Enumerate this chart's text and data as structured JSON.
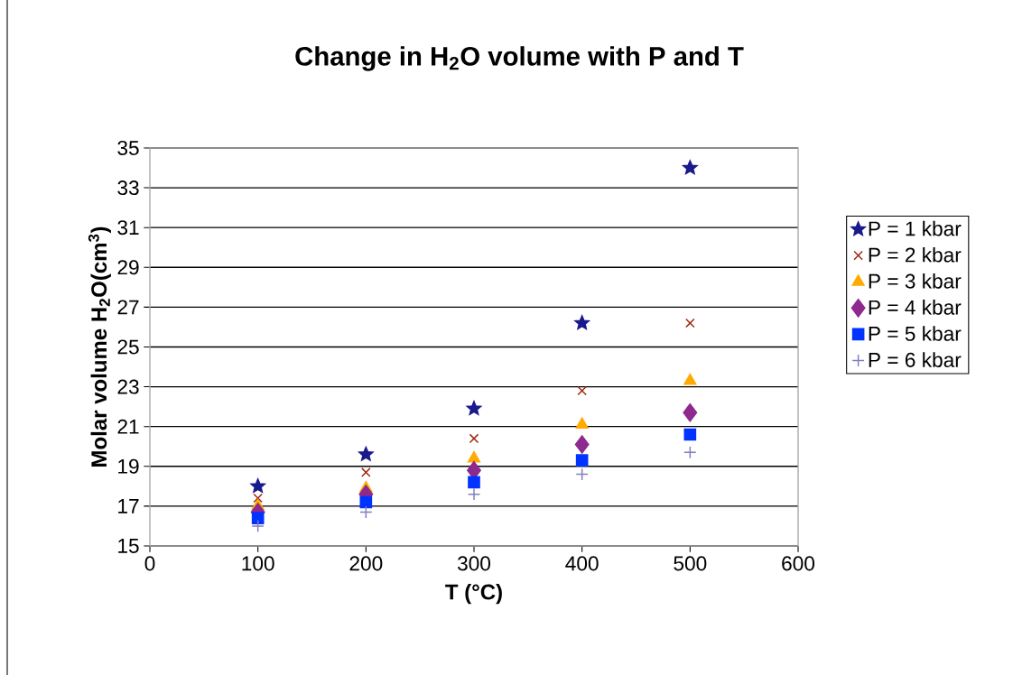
{
  "chart_data": {
    "type": "scatter",
    "title": "Change in H$_{2}$O volume with P and T",
    "xlabel": "T (°C)",
    "ylabel": "Molar volume H$_{2}$O(cm$^{3}$)",
    "x": [
      100,
      200,
      300,
      400,
      500
    ],
    "series": [
      {
        "name": "P = 1 kbar",
        "color": "#1a1a8c",
        "marker": "star",
        "values": [
          18.0,
          19.6,
          21.9,
          26.2,
          34.0
        ]
      },
      {
        "name": "P = 2 kbar",
        "color": "#a0260f",
        "marker": "cross",
        "values": [
          17.4,
          18.7,
          20.4,
          22.8,
          26.2
        ]
      },
      {
        "name": "P = 3 kbar",
        "color": "#ffaa00",
        "marker": "triangle",
        "values": [
          17.0,
          17.9,
          19.4,
          21.1,
          23.3
        ]
      },
      {
        "name": "P = 4 kbar",
        "color": "#8e2a8e",
        "marker": "diamond",
        "values": [
          16.7,
          17.6,
          18.8,
          20.1,
          21.7
        ]
      },
      {
        "name": "P = 5 kbar",
        "color": "#0033ff",
        "marker": "square",
        "values": [
          16.4,
          17.2,
          18.2,
          19.3,
          20.6
        ]
      },
      {
        "name": "P = 6 kbar",
        "color": "#7f7fbf",
        "marker": "plus",
        "values": [
          16.0,
          16.7,
          17.6,
          18.6,
          19.7
        ]
      }
    ],
    "xlim": [
      0,
      600
    ],
    "ylim": [
      15,
      35
    ],
    "xticks": [
      0,
      100,
      200,
      300,
      400,
      500,
      600
    ],
    "yticks": [
      15,
      17,
      19,
      21,
      23,
      25,
      27,
      29,
      31,
      33,
      35
    ],
    "grid": "y",
    "legend": "right"
  }
}
